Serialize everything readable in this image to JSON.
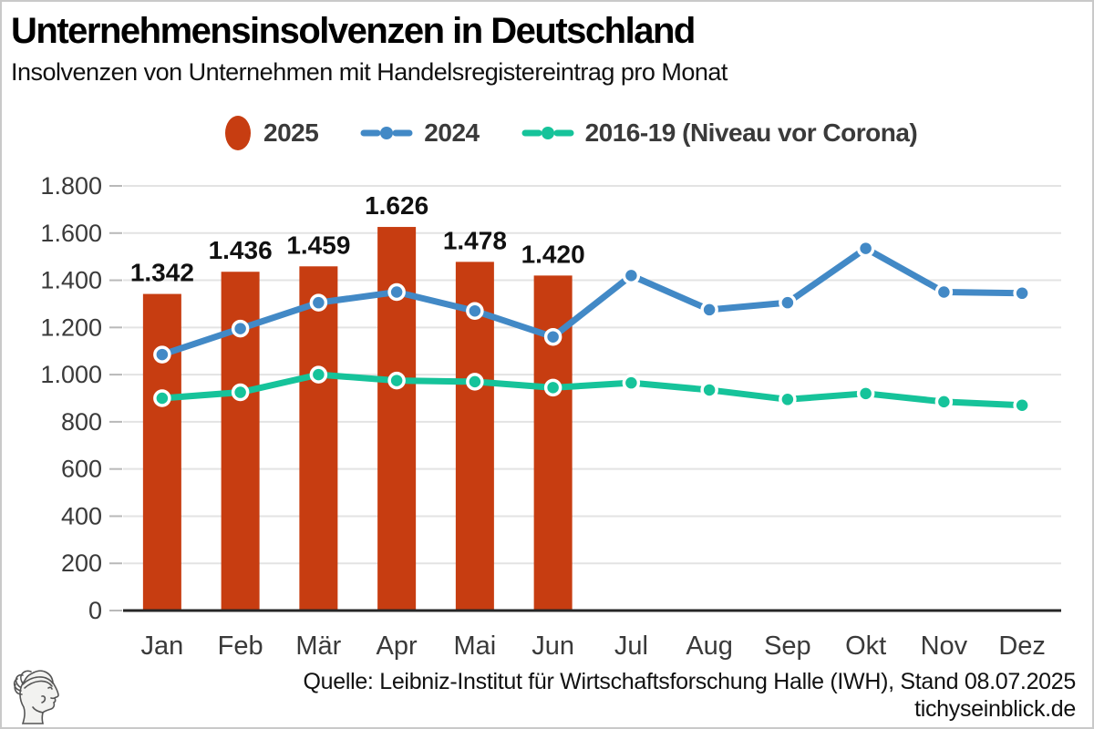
{
  "title": "Unternehmensinsolvenzen in Deutschland",
  "subtitle": "Insolvenzen von Unternehmen mit Handelsregistereintrag pro Monat",
  "legend": [
    {
      "label": "2025",
      "marker": "filled-ellipse",
      "color": "#c73d11"
    },
    {
      "label": "2024",
      "marker": "dash-dot-dash",
      "color": "#4289c6"
    },
    {
      "label": "2016-19 (Niveau vor Corona)",
      "marker": "dash-dot-dash",
      "color": "#16c39a"
    }
  ],
  "chart_data": {
    "type": "bar",
    "title": "Unternehmensinsolvenzen in Deutschland",
    "subtitle": "Insolvenzen von Unternehmen mit Handelsregistereintrag pro Monat",
    "categories": [
      "Jan",
      "Feb",
      "Mär",
      "Apr",
      "Mai",
      "Jun",
      "Jul",
      "Aug",
      "Sep",
      "Okt",
      "Nov",
      "Dez"
    ],
    "series": [
      {
        "name": "2025",
        "type": "bar",
        "color": "#c73d11",
        "values": [
          1342,
          1436,
          1459,
          1626,
          1478,
          1420,
          null,
          null,
          null,
          null,
          null,
          null
        ],
        "data_labels": [
          "1.342",
          "1.436",
          "1.459",
          "1.626",
          "1.478",
          "1.420",
          "",
          "",
          "",
          "",
          "",
          ""
        ]
      },
      {
        "name": "2024",
        "type": "line",
        "color": "#4289c6",
        "values": [
          1085,
          1195,
          1305,
          1350,
          1270,
          1160,
          1420,
          1275,
          1305,
          1535,
          1350,
          1345
        ]
      },
      {
        "name": "2016-19 (Niveau vor Corona)",
        "type": "line",
        "color": "#16c39a",
        "values": [
          900,
          925,
          1000,
          975,
          970,
          945,
          965,
          935,
          895,
          920,
          885,
          870
        ]
      }
    ],
    "ylim": [
      0,
      1800
    ],
    "ytick_values": [
      0,
      200,
      400,
      600,
      800,
      1000,
      1200,
      1400,
      1600,
      1800
    ],
    "ytick_labels": [
      "0",
      "200",
      "400",
      "600",
      "800",
      "1.000",
      "1.200",
      "1.400",
      "1.600",
      "1.800"
    ],
    "xlabel": "",
    "ylabel": "",
    "grid": "horizontal",
    "legend_position": "top",
    "colors": {
      "grid": "#e3e3e3",
      "baseline": "#262626",
      "tick": "#b9b9b9",
      "axis_text": "#3a3a3a",
      "data_label_text": "#111111",
      "marker_ring": "#ffffff"
    }
  },
  "footer": {
    "source": "Quelle: Leibniz-Institut für Wirtschaftsforschung Halle (IWH), Stand 08.07.2025",
    "site": "tichyseinblick.de"
  },
  "logo": {
    "name": "tichys-einblick-hermes-head"
  }
}
